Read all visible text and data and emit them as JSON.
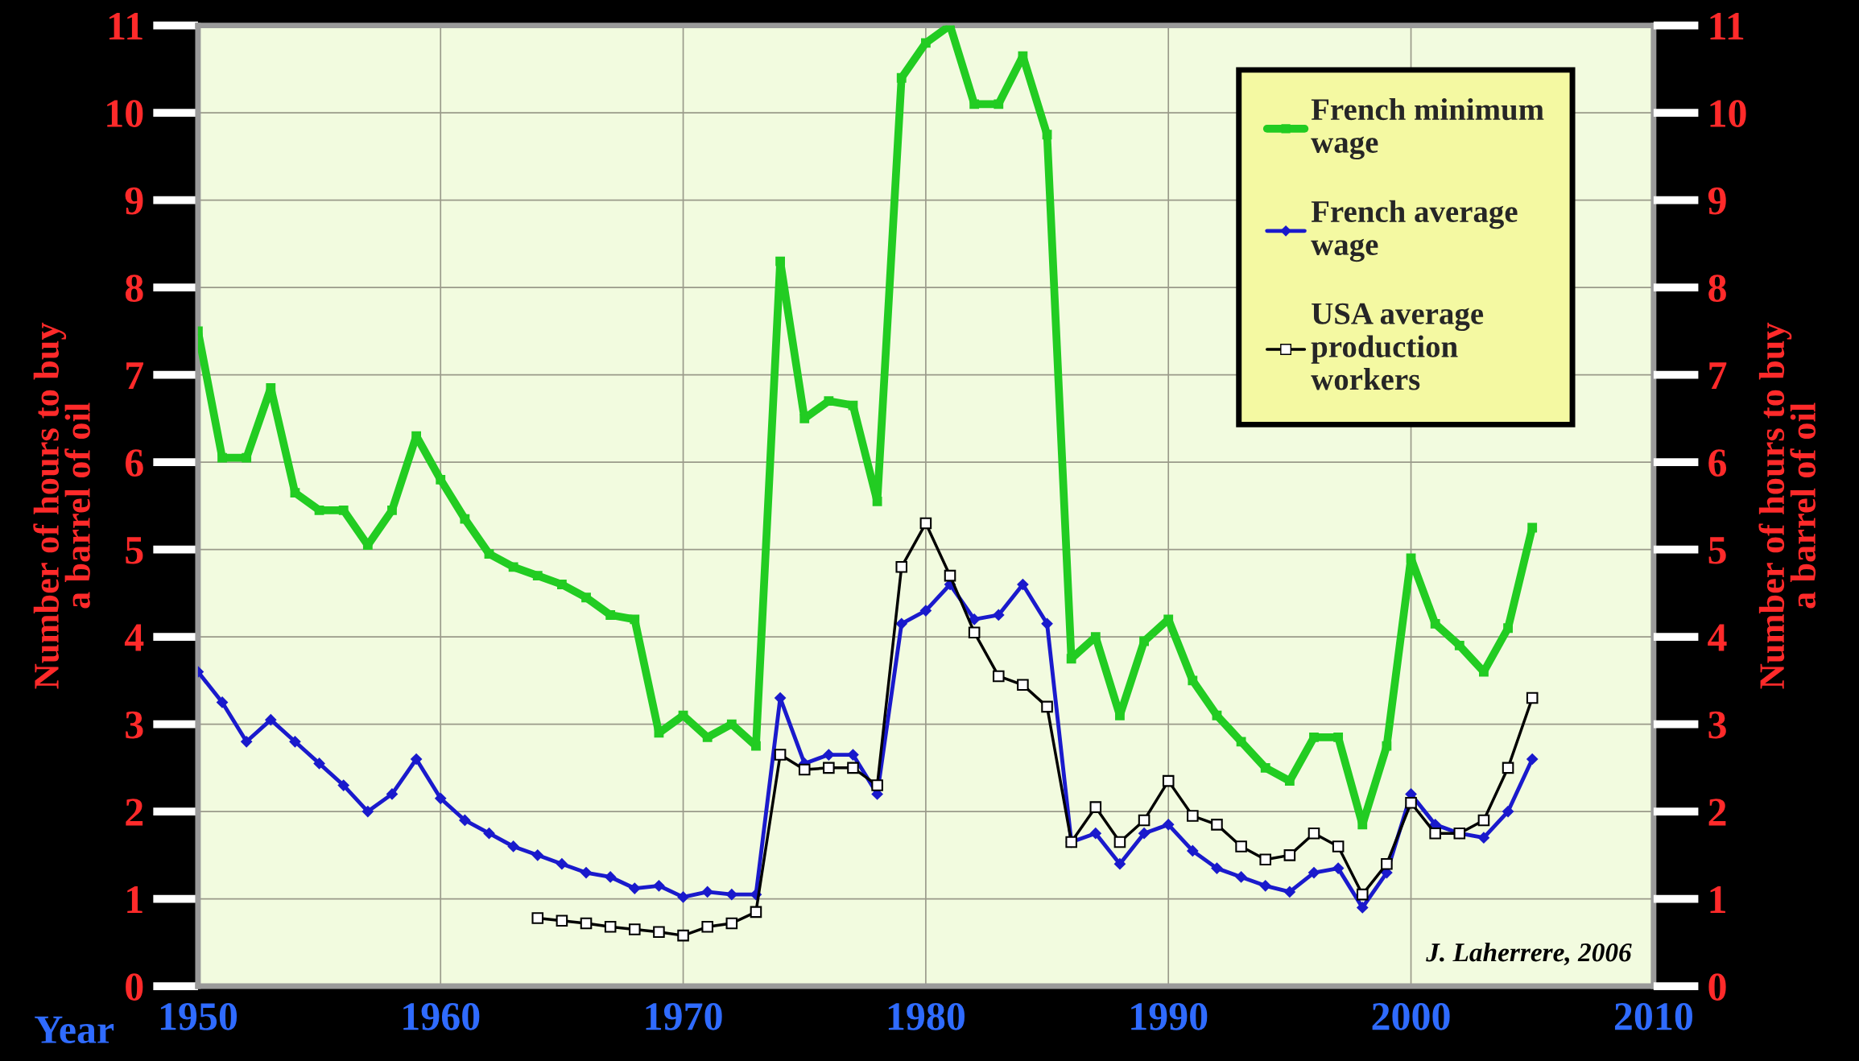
{
  "chart_data": {
    "type": "line",
    "xlabel": "Year",
    "ylabel": "Number of hours to buy\na barrel of oil",
    "y2label": "Number of hours to buy\na barrel of oil",
    "x": [
      1950,
      1951,
      1952,
      1953,
      1954,
      1955,
      1956,
      1957,
      1958,
      1959,
      1960,
      1961,
      1962,
      1963,
      1964,
      1965,
      1966,
      1967,
      1968,
      1969,
      1970,
      1971,
      1972,
      1973,
      1974,
      1975,
      1976,
      1977,
      1978,
      1979,
      1980,
      1981,
      1982,
      1983,
      1984,
      1985,
      1986,
      1987,
      1988,
      1989,
      1990,
      1991,
      1992,
      1993,
      1994,
      1995,
      1996,
      1997,
      1998,
      1999,
      2000,
      2001,
      2002,
      2003,
      2004,
      2005
    ],
    "series": [
      {
        "name": "French minimum\nwage",
        "color": "#22cc22",
        "marker": "square",
        "values": [
          7.5,
          6.05,
          6.05,
          6.85,
          5.65,
          5.45,
          5.45,
          5.05,
          5.45,
          6.3,
          5.8,
          5.35,
          4.95,
          4.8,
          4.7,
          4.6,
          4.45,
          4.25,
          4.2,
          2.9,
          3.1,
          2.85,
          3.0,
          2.75,
          8.3,
          6.5,
          6.7,
          6.65,
          5.55,
          10.4,
          10.8,
          11.0,
          10.1,
          10.1,
          10.65,
          9.75,
          3.75,
          4.0,
          3.1,
          3.95,
          4.2,
          3.5,
          3.1,
          2.8,
          2.5,
          2.35,
          2.85,
          2.85,
          1.85,
          2.75,
          4.9,
          4.15,
          3.9,
          3.6,
          4.1,
          5.25
        ]
      },
      {
        "name": "French average\nwage",
        "color": "#1a1acc",
        "marker": "diamond",
        "values": [
          3.6,
          3.25,
          2.8,
          3.05,
          2.8,
          2.55,
          2.3,
          2.0,
          2.2,
          2.6,
          2.15,
          1.9,
          1.75,
          1.6,
          1.5,
          1.4,
          1.3,
          1.25,
          1.12,
          1.15,
          1.02,
          1.08,
          1.05,
          1.05,
          3.3,
          2.55,
          2.65,
          2.65,
          2.2,
          4.15,
          4.3,
          4.6,
          4.2,
          4.25,
          4.6,
          4.15,
          1.65,
          1.75,
          1.4,
          1.75,
          1.85,
          1.55,
          1.35,
          1.25,
          1.15,
          1.08,
          1.3,
          1.35,
          0.9,
          1.3,
          2.2,
          1.85,
          1.75,
          1.7,
          2.0,
          2.6
        ]
      },
      {
        "name": "USA average\nproduction\nworkers",
        "color": "#000000",
        "marker": "square",
        "x": [
          1964,
          1965,
          1966,
          1967,
          1968,
          1969,
          1970,
          1971,
          1972,
          1973,
          1974,
          1975,
          1976,
          1977,
          1978,
          1979,
          1980,
          1981,
          1982,
          1983,
          1984,
          1985,
          1986,
          1987,
          1988,
          1989,
          1990,
          1991,
          1992,
          1993,
          1994,
          1995,
          1996,
          1997,
          1998,
          1999,
          2000,
          2001,
          2002,
          2003,
          2004,
          2005
        ],
        "values": [
          0.78,
          0.75,
          0.72,
          0.68,
          0.65,
          0.62,
          0.58,
          0.68,
          0.72,
          0.85,
          2.65,
          2.48,
          2.5,
          2.5,
          2.3,
          4.8,
          5.3,
          4.7,
          4.05,
          3.55,
          3.45,
          3.2,
          1.65,
          2.05,
          1.65,
          1.9,
          2.35,
          1.95,
          1.85,
          1.6,
          1.45,
          1.5,
          1.75,
          1.6,
          1.05,
          1.4,
          2.1,
          1.75,
          1.75,
          1.9,
          2.5,
          3.3
        ]
      }
    ],
    "xlim": [
      1950,
      2010
    ],
    "xticks": [
      1950,
      1960,
      1970,
      1980,
      1990,
      2000,
      2010
    ],
    "ylim": [
      0,
      11
    ],
    "yticks": [
      0,
      1,
      2,
      3,
      4,
      5,
      6,
      7,
      8,
      9,
      10,
      11
    ],
    "y2lim": [
      0,
      11
    ],
    "y2ticks": [
      0,
      1,
      2,
      3,
      4,
      5,
      6,
      7,
      8,
      9,
      10,
      11
    ],
    "grid": true,
    "legend": "top right",
    "line_style": "solid",
    "annotations": [
      {
        "text": "J. Laherrere, 2006"
      }
    ]
  }
}
